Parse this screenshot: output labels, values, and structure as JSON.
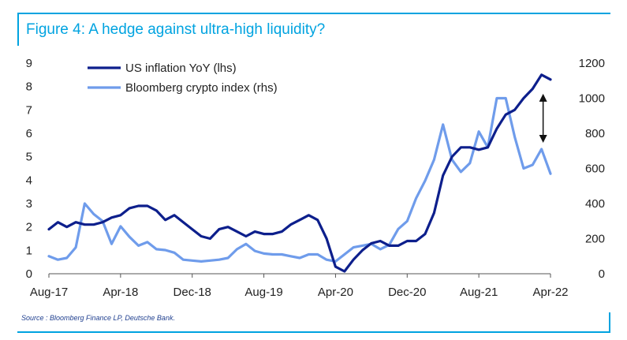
{
  "title": "Figure 4: A hedge against ultra-high liquidity?",
  "source": "Source : Bloomberg Finance LP, Deutsche Bank.",
  "colors": {
    "accent": "#00a3e0",
    "inflation": "#0d1f8c",
    "crypto": "#6f9ceb",
    "source_text": "#1f3f8f"
  },
  "chart_data": {
    "type": "line",
    "title": "Figure 4: A hedge against ultra-high liquidity?",
    "x_tick_labels": [
      "Aug-17",
      "Apr-18",
      "Dec-18",
      "Aug-19",
      "Apr-20",
      "Dec-20",
      "Aug-21",
      "Apr-22"
    ],
    "y_left": {
      "ticks": [
        "0",
        "1",
        "2",
        "3",
        "4",
        "5",
        "6",
        "7",
        "8",
        "9"
      ],
      "range": [
        0,
        9
      ]
    },
    "y_right": {
      "ticks": [
        "0",
        "200",
        "400",
        "600",
        "800",
        "1000",
        "1200"
      ],
      "range": [
        0,
        1200
      ]
    },
    "grid": false,
    "legend_position": "top-left",
    "annotation": "double-headed arrow between series at Mar-22",
    "series": [
      {
        "name": "US inflation YoY (lhs)",
        "axis": "left",
        "x": [
          "2017-08",
          "2017-09",
          "2017-10",
          "2017-11",
          "2017-12",
          "2018-01",
          "2018-02",
          "2018-03",
          "2018-04",
          "2018-05",
          "2018-06",
          "2018-07",
          "2018-08",
          "2018-09",
          "2018-10",
          "2018-11",
          "2018-12",
          "2019-01",
          "2019-02",
          "2019-03",
          "2019-04",
          "2019-05",
          "2019-06",
          "2019-07",
          "2019-08",
          "2019-09",
          "2019-10",
          "2019-11",
          "2019-12",
          "2020-01",
          "2020-02",
          "2020-03",
          "2020-04",
          "2020-05",
          "2020-06",
          "2020-07",
          "2020-08",
          "2020-09",
          "2020-10",
          "2020-11",
          "2020-12",
          "2021-01",
          "2021-02",
          "2021-03",
          "2021-04",
          "2021-05",
          "2021-06",
          "2021-07",
          "2021-08",
          "2021-09",
          "2021-10",
          "2021-11",
          "2021-12",
          "2022-01",
          "2022-02",
          "2022-03",
          "2022-04"
        ],
        "values": [
          1.9,
          2.2,
          2.0,
          2.2,
          2.1,
          2.1,
          2.2,
          2.4,
          2.5,
          2.8,
          2.9,
          2.9,
          2.7,
          2.3,
          2.5,
          2.2,
          1.9,
          1.6,
          1.5,
          1.9,
          2.0,
          1.8,
          1.6,
          1.8,
          1.7,
          1.7,
          1.8,
          2.1,
          2.3,
          2.5,
          2.3,
          1.5,
          0.3,
          0.1,
          0.6,
          1.0,
          1.3,
          1.4,
          1.2,
          1.2,
          1.4,
          1.4,
          1.7,
          2.6,
          4.2,
          5.0,
          5.4,
          5.4,
          5.3,
          5.4,
          6.2,
          6.8,
          7.0,
          7.5,
          7.9,
          8.5,
          8.3
        ]
      },
      {
        "name": "Bloomberg crypto index (rhs)",
        "axis": "right",
        "x": [
          "2017-08",
          "2017-09",
          "2017-10",
          "2017-11",
          "2017-12",
          "2018-01",
          "2018-02",
          "2018-03",
          "2018-04",
          "2018-05",
          "2018-06",
          "2018-07",
          "2018-08",
          "2018-09",
          "2018-10",
          "2018-11",
          "2018-12",
          "2019-01",
          "2019-02",
          "2019-03",
          "2019-04",
          "2019-05",
          "2019-06",
          "2019-07",
          "2019-08",
          "2019-09",
          "2019-10",
          "2019-11",
          "2019-12",
          "2020-01",
          "2020-02",
          "2020-03",
          "2020-04",
          "2020-05",
          "2020-06",
          "2020-07",
          "2020-08",
          "2020-09",
          "2020-10",
          "2020-11",
          "2020-12",
          "2021-01",
          "2021-02",
          "2021-03",
          "2021-04",
          "2021-05",
          "2021-06",
          "2021-07",
          "2021-08",
          "2021-09",
          "2021-10",
          "2021-11",
          "2021-12",
          "2022-01",
          "2022-02",
          "2022-03",
          "2022-04"
        ],
        "values": [
          100,
          80,
          90,
          150,
          400,
          340,
          300,
          170,
          270,
          210,
          160,
          180,
          140,
          135,
          120,
          80,
          75,
          70,
          75,
          80,
          90,
          140,
          170,
          130,
          115,
          110,
          110,
          100,
          90,
          110,
          110,
          80,
          70,
          110,
          150,
          160,
          170,
          140,
          165,
          255,
          300,
          430,
          530,
          650,
          850,
          650,
          580,
          630,
          810,
          720,
          1000,
          1000,
          780,
          600,
          620,
          710,
          570
        ]
      }
    ]
  }
}
